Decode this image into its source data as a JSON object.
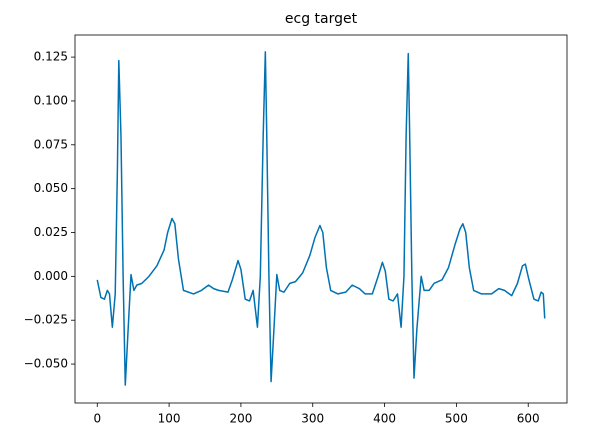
{
  "chart_data": {
    "type": "line",
    "title": "ecg target",
    "x": [
      0,
      5,
      10,
      14,
      17,
      21,
      25,
      28,
      30,
      33,
      36,
      39,
      43,
      47,
      51,
      55,
      62,
      72,
      83,
      93,
      98,
      104,
      108,
      113,
      120,
      134,
      145,
      155,
      162,
      169,
      182,
      188,
      196,
      200,
      206,
      212,
      217,
      223,
      227,
      231,
      234,
      236,
      239,
      242,
      246,
      250,
      254,
      260,
      268,
      276,
      286,
      296,
      303,
      310,
      314,
      319,
      325,
      335,
      346,
      355,
      365,
      373,
      383,
      391,
      397,
      401,
      406,
      412,
      418,
      423,
      427,
      430,
      433,
      435,
      438,
      441,
      445,
      451,
      455,
      462,
      469,
      480,
      489,
      498,
      505,
      509,
      513,
      518,
      524,
      535,
      549,
      559,
      567,
      577,
      585,
      592,
      596,
      601,
      608,
      614,
      618,
      621,
      623
    ],
    "series": [
      {
        "color": "#0072b2",
        "values": [
          -0.002,
          -0.012,
          -0.013,
          -0.008,
          -0.01,
          -0.029,
          -0.01,
          0.06,
          0.123,
          0.08,
          0.0,
          -0.062,
          -0.03,
          0.001,
          -0.008,
          -0.005,
          -0.004,
          0.0,
          0.006,
          0.015,
          0.025,
          0.033,
          0.03,
          0.01,
          -0.008,
          -0.01,
          -0.008,
          -0.005,
          -0.007,
          -0.008,
          -0.009,
          -0.002,
          0.009,
          0.004,
          -0.013,
          -0.014,
          -0.008,
          -0.029,
          0.0,
          0.08,
          0.128,
          0.08,
          0.0,
          -0.06,
          -0.03,
          0.001,
          -0.008,
          -0.009,
          -0.004,
          -0.003,
          0.002,
          0.012,
          0.022,
          0.029,
          0.025,
          0.005,
          -0.008,
          -0.01,
          -0.009,
          -0.005,
          -0.007,
          -0.01,
          -0.01,
          0.0,
          0.008,
          0.003,
          -0.013,
          -0.014,
          -0.01,
          -0.029,
          0.0,
          0.08,
          0.127,
          0.08,
          0.0,
          -0.058,
          -0.03,
          0.0,
          -0.008,
          -0.008,
          -0.004,
          -0.002,
          0.005,
          0.018,
          0.027,
          0.03,
          0.025,
          0.005,
          -0.008,
          -0.01,
          -0.01,
          -0.007,
          -0.008,
          -0.011,
          -0.004,
          0.006,
          0.007,
          -0.002,
          -0.013,
          -0.014,
          -0.009,
          -0.01,
          -0.024
        ]
      }
    ],
    "xlim": [
      -31,
      654
    ],
    "xticks": [
      0,
      100,
      200,
      300,
      400,
      500,
      600
    ],
    "ylim": [
      -0.0722,
      0.1376
    ],
    "yticks": [
      {
        "value": -0.05,
        "label": "−0.050"
      },
      {
        "value": -0.025,
        "label": "−0.025"
      },
      {
        "value": 0,
        "label": "0.000"
      },
      {
        "value": 0.025,
        "label": "0.025"
      },
      {
        "value": 0.05,
        "label": "0.050"
      },
      {
        "value": 0.075,
        "label": "0.075"
      },
      {
        "value": 0.1,
        "label": "0.100"
      },
      {
        "value": 0.125,
        "label": "0.125"
      }
    ]
  }
}
